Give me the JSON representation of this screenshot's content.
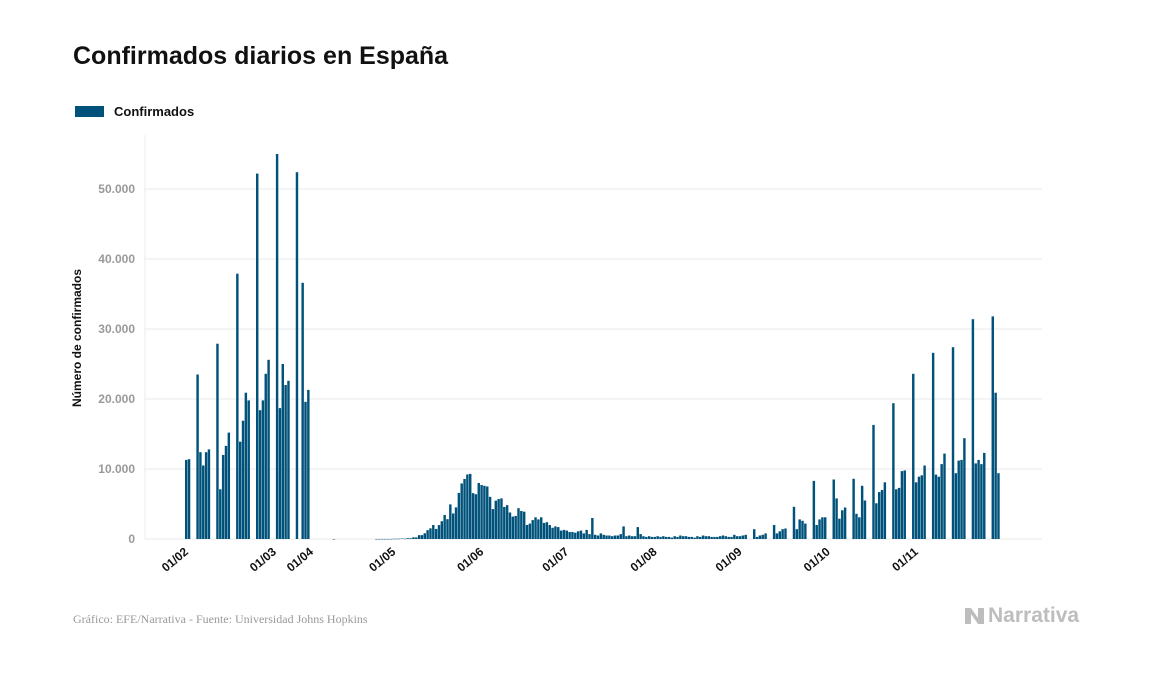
{
  "title": "Confirmados diarios en España",
  "legend": {
    "label": "Confirmados",
    "color": "#00527a",
    "placement": "top-left"
  },
  "source": "Gráfico: EFE/Narrativa - Fuente: Universidad Johns Hopkins",
  "logo_text": "Narrativa",
  "chart_data": {
    "type": "bar",
    "title": "Confirmados diarios en España",
    "xlabel": "",
    "ylabel": "Número de confirmados",
    "ylim": [
      0,
      57000
    ],
    "grid": true,
    "y_ticks": [
      0,
      10000,
      20000,
      30000,
      40000,
      50000
    ],
    "y_tick_labels": [
      "0",
      "10.000",
      "20.000",
      "30.000",
      "40.000",
      "50.000"
    ],
    "x_tick_labels": [
      "01/02",
      "01/03",
      "01/04",
      "01/05",
      "01/06",
      "01/07",
      "01/08",
      "01/09",
      "01/10",
      "01/11"
    ],
    "series": [
      {
        "name": "Confirmados",
        "color": "#00527a",
        "values_by_month": {
          "02": [
            0,
            0,
            0,
            0,
            0,
            0,
            0,
            0,
            1,
            0,
            0,
            0,
            0,
            0,
            0,
            0,
            0,
            0,
            0,
            0,
            0,
            0,
            0,
            2,
            6,
            13,
            8,
            9,
            13
          ],
          "03": [
            31,
            38,
            41,
            72,
            50,
            118,
            108,
            241,
            222,
            548,
            555,
            821,
            1266,
            1522,
            2000,
            1438,
            1987,
            2538,
            3431,
            2833,
            4946,
            3646,
            4517,
            6584,
            7937,
            8578,
            9222,
            9300,
            6549,
            6398,
            8000
          ],
          "04": [
            7719,
            7600,
            7500,
            6023,
            4273,
            5478,
            5703,
            5800,
            4576,
            4830,
            3788,
            3200,
            3300,
            4400,
            4000,
            3900,
            2000,
            2200,
            2700,
            3100,
            2800,
            3100,
            2300,
            2400,
            2000,
            1600,
            1800,
            1700,
            1200,
            1300
          ],
          "05": [
            1200,
            1000,
            1000,
            900,
            1100,
            1200,
            800,
            1300,
            700,
            3000,
            600,
            500,
            800,
            600,
            500,
            500,
            400,
            500,
            500,
            700,
            1800,
            400,
            500,
            400,
            400,
            1700,
            700,
            400,
            300,
            400,
            300
          ],
          "06": [
            300,
            400,
            300,
            400,
            300,
            300,
            200,
            400,
            300,
            500,
            400,
            400,
            300,
            300,
            200,
            400,
            300,
            500,
            400,
            400,
            300,
            300,
            300,
            400,
            500,
            400,
            300,
            300,
            600,
            400
          ],
          "07": [
            400,
            500,
            600,
            0,
            0,
            1400,
            300,
            500,
            600,
            800,
            0,
            0,
            2000,
            800,
            1100,
            1400,
            1500,
            0,
            0,
            4600,
            1400,
            2800,
            2600,
            2200,
            0,
            0,
            8300,
            2000,
            2800,
            3100,
            3100
          ],
          "08": [
            0,
            0,
            8500,
            5800,
            2900,
            4100,
            4500,
            0,
            0,
            8600,
            3600,
            3100,
            7600,
            5500,
            0,
            0,
            16300,
            5100,
            6700,
            7000,
            8100,
            0,
            0,
            19400,
            7100,
            7300,
            9700,
            9800,
            0,
            0,
            23600
          ],
          "09": [
            8100,
            8900,
            9100,
            10500,
            0,
            0,
            26600,
            9200,
            8900,
            10700,
            12200,
            0,
            0,
            27400,
            9400,
            11200,
            11300,
            14400,
            0,
            0,
            31400,
            10800,
            11300,
            10700,
            12300,
            0,
            0,
            31800,
            20900,
            9400
          ],
          "10": [
            11300,
            11400,
            0,
            0,
            23500,
            12400,
            10500,
            12400,
            12800,
            0,
            0,
            27900,
            7100,
            12000,
            13300,
            15200,
            0,
            0,
            37900,
            13900,
            16900,
            20900,
            19800,
            0,
            0,
            52200,
            18400,
            19800,
            23600,
            25600,
            0
          ],
          "11": [
            0,
            55000,
            18700,
            25000,
            22000,
            22600,
            0,
            0,
            52400,
            0,
            36600,
            19600,
            21300
          ]
        }
      }
    ]
  }
}
